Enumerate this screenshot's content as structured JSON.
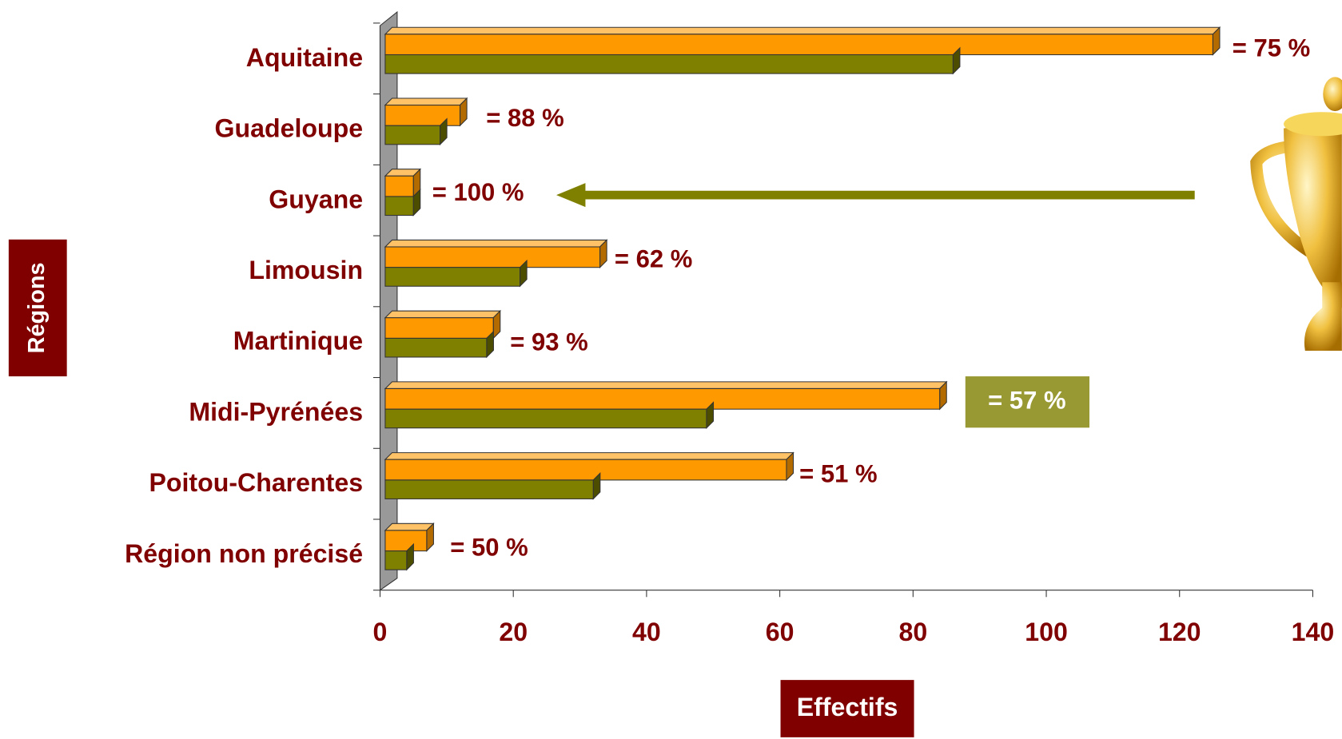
{
  "chart_data": {
    "type": "bar",
    "orientation": "horizontal",
    "x_label": "Effectifs",
    "y_label": "Régions",
    "categories": [
      "Aquitaine",
      "Guadeloupe",
      "Guyane",
      "Limousin",
      "Martinique",
      "Midi-Pyrénées",
      "Poitou-Charentes",
      "Région non précisé"
    ],
    "series": [
      {
        "color": "#ff9900",
        "values": [
          125,
          12,
          5,
          33,
          17,
          84,
          61,
          7
        ]
      },
      {
        "color": "#808000",
        "values": [
          86,
          9,
          5,
          21,
          16,
          49,
          32,
          4
        ]
      }
    ],
    "bar_labels": [
      "= 75 %",
      "= 88 %",
      "= 100 %",
      "= 62 %",
      "= 93 %",
      "= 57 %",
      "= 51 %",
      "= 50 %"
    ],
    "xlim": [
      0,
      140
    ],
    "xticks": [
      0,
      20,
      40,
      60,
      80,
      100,
      120,
      140
    ]
  }
}
